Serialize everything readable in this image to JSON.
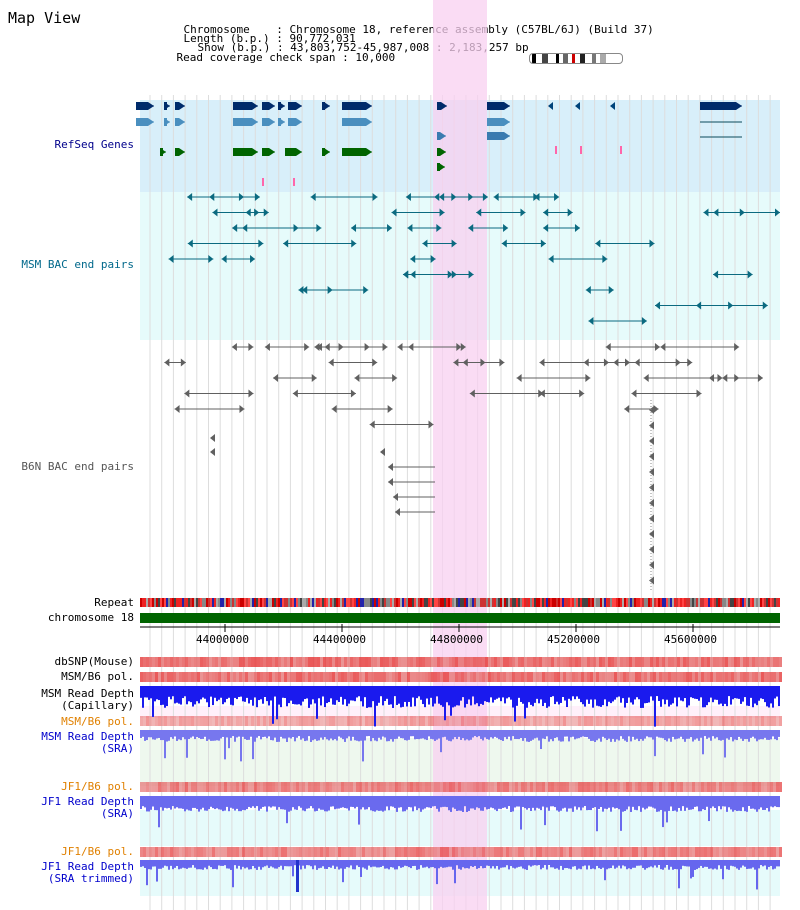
{
  "title": "Map View",
  "info": {
    "chromosome_label": "Chromosome",
    "chromosome_value": "Chromosome 18, reference assembly (C57BL/6J) (Build 37)",
    "length_label": "Length (b.p.)",
    "length_value": "90,772,031",
    "show_label": "Show (b.p.)",
    "show_value": "43,803,752-45,987,008 : 2,183,257 bp",
    "span_label": "Read coverage check span",
    "span_value": "10,000"
  },
  "axis": {
    "ticks": [
      "44000000",
      "44400000",
      "44800000",
      "45200000",
      "45600000"
    ]
  },
  "tracks": {
    "refseq": "RefSeq Genes",
    "msm_bac": "MSM BAC end pairs",
    "b6n_bac": "B6N BAC end pairs",
    "repeat": "Repeat",
    "chromosome": "chromosome 18",
    "dbsnp": "dbSNP(Mouse)",
    "msm_b6_pol": "MSM/B6 pol.",
    "msm_depth_cap_1": "MSM Read Depth",
    "msm_depth_cap_2": "(Capillary)",
    "msm_b6_pol_sra": "MSM/B6 pol.",
    "msm_depth_sra_1": "MSM Read Depth",
    "msm_depth_sra_2": "(SRA)",
    "jf1_b6_pol": "JF1/B6 pol.",
    "jf1_depth_sra_1": "JF1 Read Depth",
    "jf1_depth_sra_2": "(SRA)",
    "jf1_b6_pol_trim": "JF1/B6 pol.",
    "jf1_depth_trim_1": "JF1 Read Depth",
    "jf1_depth_trim_2": "(SRA trimmed)"
  },
  "colors": {
    "refseq_label": "#00008b",
    "msm_label": "#00688b",
    "b6n_label": "#555555",
    "pol_orange": "#e08000",
    "depth_blue": "#0000cc",
    "highlight_pink": "#f8d0f0",
    "refseq_bg": "#d8effa",
    "bac_bg": "#e6fbfb",
    "chrom_green": "#006400"
  }
}
